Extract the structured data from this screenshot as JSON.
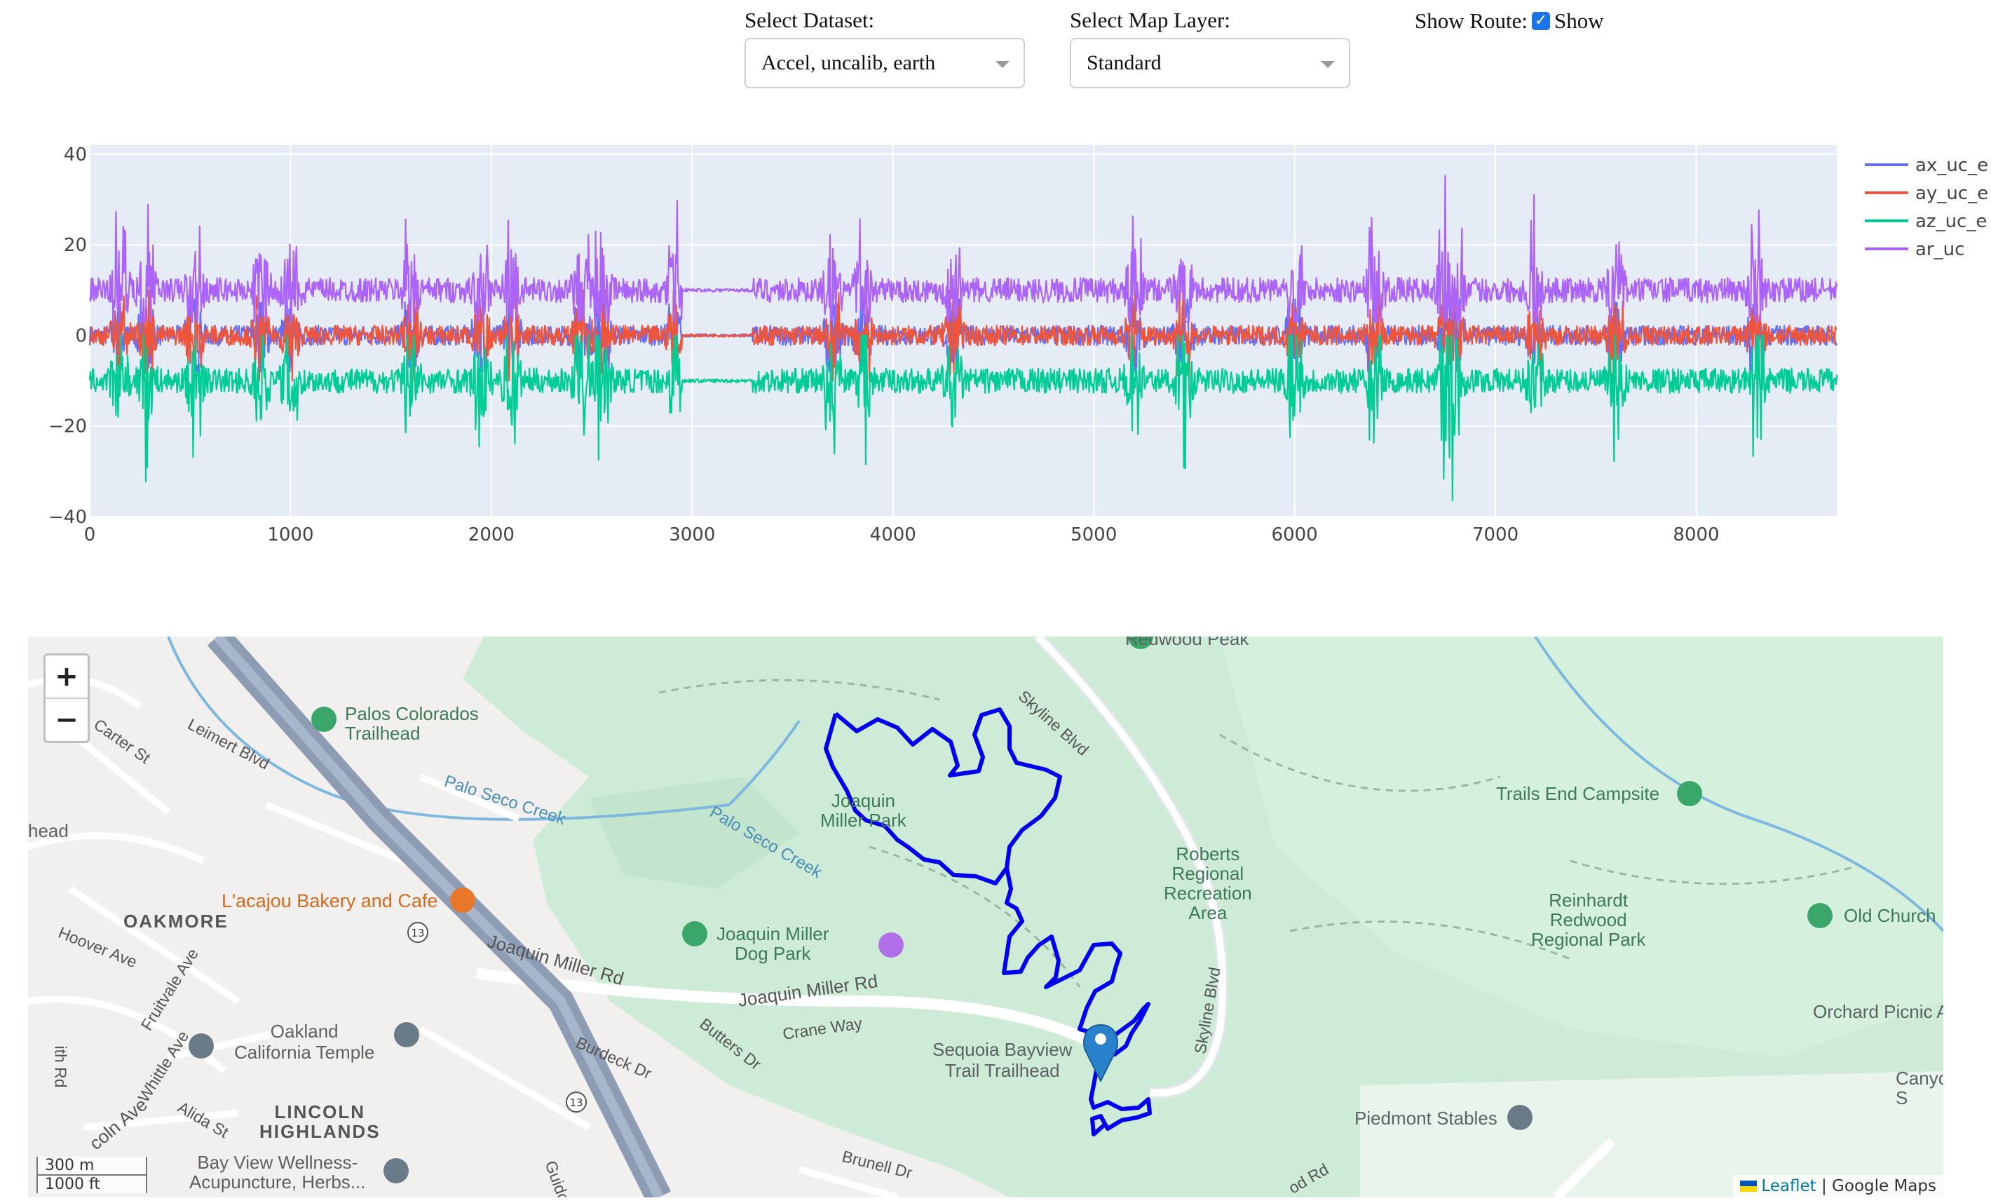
{
  "controls": {
    "dataset": {
      "label": "Select Dataset:",
      "value": "Accel, uncalib, earth"
    },
    "map_layer": {
      "label": "Select Map Layer:",
      "value": "Standard"
    },
    "route": {
      "label": "Show Route:",
      "checkbox_label": "Show",
      "checked": true
    }
  },
  "chart_data": {
    "type": "line",
    "title": "",
    "xlabel": "",
    "ylabel": "",
    "xlim": [
      0,
      8700
    ],
    "ylim": [
      -40,
      42
    ],
    "x_ticks": [
      0,
      1000,
      2000,
      3000,
      4000,
      5000,
      6000,
      7000,
      8000
    ],
    "y_ticks": [
      -40,
      -20,
      0,
      20,
      40
    ],
    "grid": true,
    "legend_position": "right",
    "series": [
      {
        "name": "ax_uc_e",
        "color": "#636efa",
        "center": 0,
        "typical_amplitude": 4,
        "peak_max": 8,
        "peak_min": -8
      },
      {
        "name": "ay_uc_e",
        "color": "#ef553b",
        "center": 0,
        "typical_amplitude": 4,
        "peak_max": 10,
        "peak_min": -10
      },
      {
        "name": "az_uc_e",
        "color": "#00cc96",
        "center": -10,
        "typical_amplitude": 5,
        "peak_max": 0,
        "peak_min": -37
      },
      {
        "name": "ar_uc",
        "color": "#ab63fa",
        "center": 10,
        "typical_amplitude": 5,
        "peak_max": 39,
        "peak_min": 3
      }
    ],
    "quiet_segments": [
      [
        2950,
        3300
      ]
    ]
  },
  "map": {
    "zoom_in": "+",
    "zoom_out": "−",
    "scale_metric": "300 m",
    "scale_imperial": "1000 ft",
    "attribution_leaflet": "Leaflet",
    "attribution_sep": "|",
    "attribution_provider": "Google Maps",
    "route_color": "#0000ee",
    "labels": {
      "redwood_peak": "Redwood Peak",
      "palos_colorados": "Palos Colorados\nTrailhead",
      "carter_st": "Carter St",
      "leimert_blvd": "Leimert Blvd",
      "palo_seco_1": "Palo Seco Creek",
      "palo_seco_2": "Palo Seco Creek",
      "head": "head",
      "skyline_blvd_1": "Skyline Blvd",
      "skyline_blvd_2": "Skyline Blvd",
      "joaquin_miller_park": "Joaquin\nMiller Park",
      "trails_end": "Trails End Campsite",
      "roberts": "Roberts\nRegional\nRecreation\nArea",
      "reinhardt": "Reinhardt\nRedwood\nRegional Park",
      "old_church": "Old Church",
      "oakmore": "OAKMORE",
      "lacajou": "L'acajou Bakery and Cafe",
      "hoover_ave": "Hoover Ave",
      "dog_park": "Joaquin Miller\nDog Park",
      "joaquin_miller_rd_1": "Joaquin Miller Rd",
      "joaquin_miller_rd_2": "Joaquin Miller Rd",
      "crane_way": "Crane Way",
      "butters_dr": "Butters Dr",
      "burdeck_dr": "Burdeck Dr",
      "fruitvale": "Fruitvale Ave",
      "whittle": "Whittle Ave",
      "temple": "Oakland\nCalifornia Temple",
      "sequoia": "Sequoia Bayview\nTrail Trailhead",
      "orchard": "Orchard Picnic A",
      "canyon": "Canyo\nS",
      "piedmont": "Piedmont Stables",
      "lincoln": "LINCOLN\nHIGHLANDS",
      "lincoln_ave": "coln Ave",
      "alida": "Alida St",
      "bayview": "Bay View Wellness-\nAcupuncture, Herbs...",
      "brunell": "Brunell Dr",
      "guido": "Guido",
      "rd": "od Rd",
      "hwy13a": "13",
      "hwy13b": "13",
      "th_rd": "ith Rd"
    }
  }
}
